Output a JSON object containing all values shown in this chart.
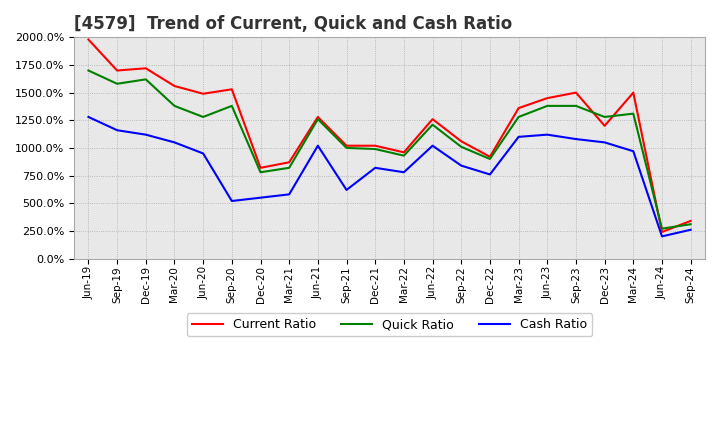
{
  "title": "[4579]  Trend of Current, Quick and Cash Ratio",
  "title_fontsize": 12,
  "x_labels": [
    "Jun-19",
    "Sep-19",
    "Dec-19",
    "Mar-20",
    "Jun-20",
    "Sep-20",
    "Dec-20",
    "Mar-21",
    "Jun-21",
    "Sep-21",
    "Dec-21",
    "Mar-22",
    "Jun-22",
    "Sep-22",
    "Dec-22",
    "Mar-23",
    "Jun-23",
    "Sep-23",
    "Dec-23",
    "Mar-24",
    "Jun-24",
    "Sep-24"
  ],
  "current_ratio": [
    1980,
    1700,
    1720,
    1560,
    1490,
    1530,
    820,
    870,
    1280,
    1020,
    1020,
    960,
    1260,
    1060,
    920,
    1360,
    1450,
    1500,
    1200,
    1500,
    240,
    340
  ],
  "quick_ratio": [
    1700,
    1580,
    1620,
    1380,
    1280,
    1380,
    780,
    820,
    1260,
    1000,
    990,
    930,
    1210,
    1010,
    900,
    1280,
    1380,
    1380,
    1280,
    1310,
    270,
    310
  ],
  "cash_ratio": [
    1280,
    1160,
    1120,
    1050,
    950,
    520,
    550,
    580,
    1020,
    620,
    820,
    780,
    1020,
    840,
    760,
    1100,
    1120,
    1080,
    1050,
    970,
    200,
    260
  ],
  "ylim": [
    0,
    2000
  ],
  "yticks": [
    0,
    250,
    500,
    750,
    1000,
    1250,
    1500,
    1750,
    2000
  ],
  "current_color": "#FF0000",
  "quick_color": "#008000",
  "cash_color": "#0000FF",
  "grid_color": "#AAAAAA",
  "bg_color": "#E8E8E8",
  "legend_labels": [
    "Current Ratio",
    "Quick Ratio",
    "Cash Ratio"
  ],
  "linewidth": 1.5
}
